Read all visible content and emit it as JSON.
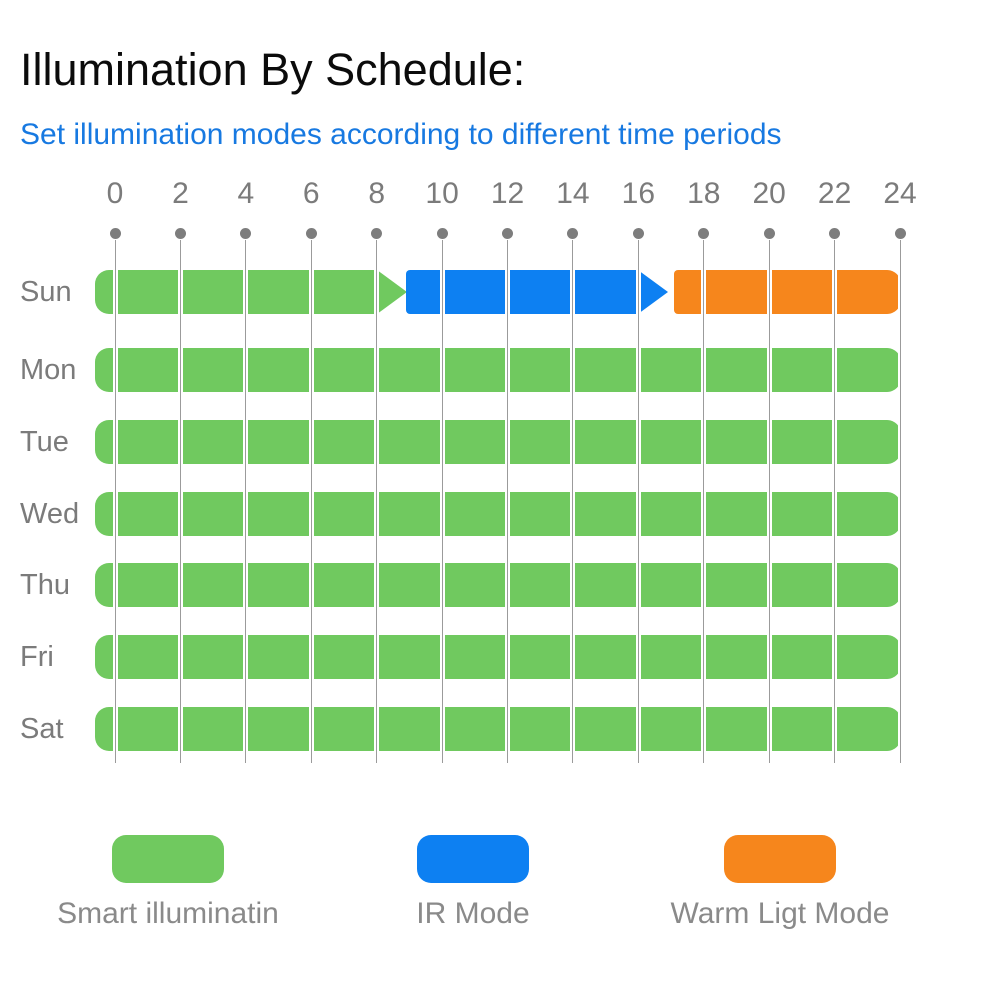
{
  "header": {
    "title": "Illumination By Schedule:",
    "subtitle": "Set illumination modes according to different time periods"
  },
  "colors": {
    "title": "#0b0b0b",
    "subtitle_blue": "#1779e1",
    "axis_gray": "#7b7b7b",
    "grid_gray": "#9b9b9b",
    "dot_gray": "#7d7d7d",
    "legend_text_gray": "#8a8a8a",
    "modes": {
      "smart": "#70c95f",
      "ir": "#0d80f2",
      "warm": "#f6861c"
    }
  },
  "chart_data": {
    "type": "timeline",
    "title": "Illumination By Schedule:",
    "x_range": [
      0,
      24
    ],
    "x_ticks": [
      0,
      2,
      4,
      6,
      8,
      10,
      12,
      14,
      16,
      18,
      20,
      22,
      24
    ],
    "days": [
      "Sun",
      "Mon",
      "Tue",
      "Wed",
      "Thu",
      "Fri",
      "Sat"
    ],
    "legend_position": "bottom",
    "grid": true,
    "rows": [
      {
        "day": "Sun",
        "segments": [
          {
            "mode": "smart",
            "label": "Smart illuminatin",
            "start": 0,
            "end": 8,
            "arrow": true
          },
          {
            "mode": "ir",
            "label": "IR Mode",
            "start": 8.9,
            "end": 16,
            "arrow": true
          },
          {
            "mode": "warm",
            "label": "Warm Ligt Mode",
            "start": 17.1,
            "end": 24,
            "arrow": false
          }
        ]
      },
      {
        "day": "Mon",
        "segments": [
          {
            "mode": "smart",
            "label": "Smart illuminatin",
            "start": 0,
            "end": 24,
            "arrow": false
          }
        ]
      },
      {
        "day": "Tue",
        "segments": [
          {
            "mode": "smart",
            "label": "Smart illuminatin",
            "start": 0,
            "end": 24,
            "arrow": false
          }
        ]
      },
      {
        "day": "Wed",
        "segments": [
          {
            "mode": "smart",
            "label": "Smart illuminatin",
            "start": 0,
            "end": 24,
            "arrow": false
          }
        ]
      },
      {
        "day": "Thu",
        "segments": [
          {
            "mode": "smart",
            "label": "Smart illuminatin",
            "start": 0,
            "end": 24,
            "arrow": false
          }
        ]
      },
      {
        "day": "Fri",
        "segments": [
          {
            "mode": "smart",
            "label": "Smart illuminatin",
            "start": 0,
            "end": 24,
            "arrow": false
          }
        ]
      },
      {
        "day": "Sat",
        "segments": [
          {
            "mode": "smart",
            "label": "Smart illuminatin",
            "start": 0,
            "end": 24,
            "arrow": false
          }
        ]
      }
    ]
  },
  "legend": [
    {
      "mode": "smart",
      "label": "Smart illuminatin"
    },
    {
      "mode": "ir",
      "label": "IR Mode"
    },
    {
      "mode": "warm",
      "label": "Warm Ligt Mode"
    }
  ]
}
